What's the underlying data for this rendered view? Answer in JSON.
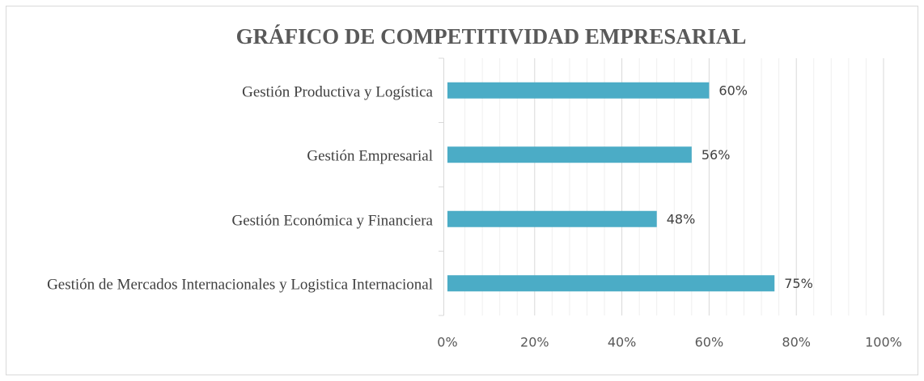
{
  "chart_data": {
    "type": "bar",
    "orientation": "horizontal",
    "title": "GRÁFICO DE COMPETITIVIDAD EMPRESARIAL",
    "categories": [
      "Gestión Productiva y Logística",
      "Gestión Empresarial",
      "Gestión Económica y Financiera",
      "Gestión de Mercados Internacionales y Logistica Internacional"
    ],
    "values": [
      60,
      56,
      48,
      75
    ],
    "value_labels": [
      "60%",
      "56%",
      "48%",
      "75%"
    ],
    "color": "#4bacc6",
    "xlim": [
      0,
      100
    ],
    "xticks": [
      {
        "value": 0,
        "label": "0%"
      },
      {
        "value": 20,
        "label": "20%"
      },
      {
        "value": 40,
        "label": "40%"
      },
      {
        "value": 60,
        "label": "60%"
      },
      {
        "value": 80,
        "label": "80%"
      },
      {
        "value": 100,
        "label": "100%"
      }
    ],
    "grid": true,
    "minor_divisions": 5
  }
}
